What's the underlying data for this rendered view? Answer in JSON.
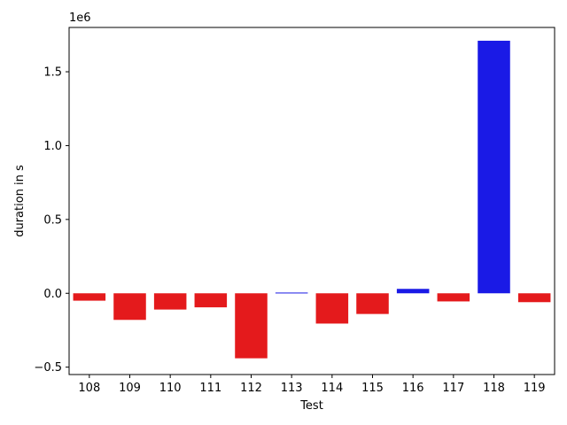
{
  "chart_data": {
    "type": "bar",
    "xlabel": "Test",
    "ylabel": "duration in s",
    "y_offset_label": "1e6",
    "ylim": [
      -0.55,
      1.8
    ],
    "y_scale": 1000000,
    "y_ticks": [
      -0.5,
      0.0,
      0.5,
      1.0,
      1.5
    ],
    "y_tick_labels": [
      "−0.5",
      "0.0",
      "0.5",
      "1.0",
      "1.5"
    ],
    "grid": false,
    "legend": "none",
    "categories": [
      "108",
      "109",
      "110",
      "111",
      "112",
      "113",
      "114",
      "115",
      "116",
      "117",
      "118",
      "119"
    ],
    "values": [
      -0.05,
      -0.18,
      -0.11,
      -0.095,
      -0.44,
      0.005,
      -0.205,
      -0.14,
      0.03,
      -0.055,
      1.71,
      -0.06
    ],
    "colors": [
      "#e41a1c",
      "#e41a1c",
      "#e41a1c",
      "#e41a1c",
      "#e41a1c",
      "#1a1ae6",
      "#e41a1c",
      "#e41a1c",
      "#1a1ae6",
      "#e41a1c",
      "#1a1ae6",
      "#e41a1c"
    ]
  }
}
